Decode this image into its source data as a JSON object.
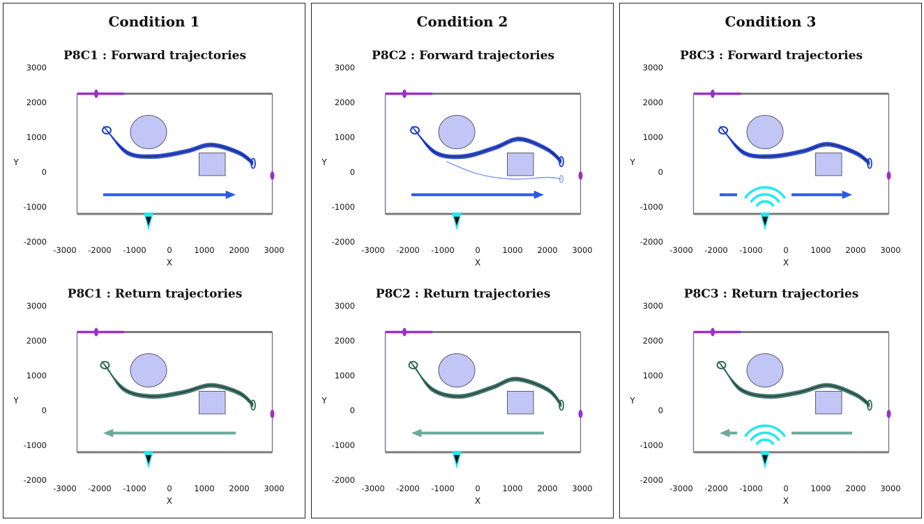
{
  "colors": {
    "forward_traj": "#1a3ccf",
    "return_traj": "#2f6b55",
    "forward_arrow": "#2a5ae8",
    "return_arrow": "#6aaa9a",
    "obstacle_fill": "#c2c6f6",
    "wall": "#7a7a7a",
    "start_marker": "#9b30c8",
    "sound_source": "#22e8f0"
  },
  "conditions": [
    {
      "title": "Condition 1"
    },
    {
      "title": "Condition 2"
    },
    {
      "title": "Condition 3"
    }
  ],
  "chart_data": [
    {
      "type": "line",
      "condition": "Condition 1",
      "direction": "forward",
      "title": "P8C1 : Forward trajectories",
      "xlabel": "X",
      "ylabel": "Y",
      "xlim": [
        -3000,
        3000
      ],
      "ylim": [
        -2000,
        3000
      ],
      "xticks": [
        "-3000",
        "-2000",
        "-1000",
        "0",
        "1000",
        "2000",
        "3000"
      ],
      "yticks": [
        "3000",
        "2000",
        "1000",
        "0",
        "-1000",
        "-2000"
      ],
      "path": [
        [
          -1800,
          1200
        ],
        [
          -1200,
          550
        ],
        [
          -400,
          450
        ],
        [
          500,
          600
        ],
        [
          1200,
          780
        ],
        [
          2000,
          550
        ],
        [
          2400,
          250
        ]
      ],
      "sound_icon": false,
      "outlier": false
    },
    {
      "type": "line",
      "condition": "Condition 1",
      "direction": "return",
      "title": "P8C1 : Return trajectories",
      "xlabel": "X",
      "ylabel": "Y",
      "xlim": [
        -3000,
        3000
      ],
      "ylim": [
        -2000,
        3000
      ],
      "xticks": [
        "-3000",
        "-2000",
        "-1000",
        "0",
        "1000",
        "2000",
        "3000"
      ],
      "yticks": [
        "3000",
        "2000",
        "1000",
        "0",
        "-1000",
        "-2000"
      ],
      "path": [
        [
          -1850,
          1300
        ],
        [
          -1300,
          600
        ],
        [
          -500,
          400
        ],
        [
          400,
          520
        ],
        [
          1200,
          720
        ],
        [
          2000,
          500
        ],
        [
          2400,
          150
        ]
      ],
      "sound_icon": false,
      "outlier": false
    },
    {
      "type": "line",
      "condition": "Condition 2",
      "direction": "forward",
      "title": "P8C2 : Forward trajectories",
      "xlabel": "X",
      "ylabel": "Y",
      "xlim": [
        -3000,
        3000
      ],
      "ylim": [
        -2000,
        3000
      ],
      "xticks": [
        "-3000",
        "-2000",
        "-1000",
        "0",
        "1000",
        "2000",
        "3000"
      ],
      "yticks": [
        "3000",
        "2000",
        "1000",
        "0",
        "-1000",
        "-2000"
      ],
      "path": [
        [
          -1800,
          1200
        ],
        [
          -1200,
          550
        ],
        [
          -400,
          450
        ],
        [
          500,
          700
        ],
        [
          1200,
          950
        ],
        [
          2000,
          650
        ],
        [
          2400,
          300
        ]
      ],
      "sound_icon": false,
      "outlier": true
    },
    {
      "type": "line",
      "condition": "Condition 2",
      "direction": "return",
      "title": "P8C2 : Return trajectories",
      "xlabel": "X",
      "ylabel": "Y",
      "xlim": [
        -3000,
        3000
      ],
      "ylim": [
        -2000,
        3000
      ],
      "xticks": [
        "-3000",
        "-2000",
        "-1000",
        "0",
        "1000",
        "2000",
        "3000"
      ],
      "yticks": [
        "3000",
        "2000",
        "1000",
        "0",
        "-1000",
        "-2000"
      ],
      "path": [
        [
          -1850,
          1300
        ],
        [
          -1300,
          600
        ],
        [
          -500,
          400
        ],
        [
          400,
          650
        ],
        [
          1100,
          900
        ],
        [
          2000,
          600
        ],
        [
          2400,
          150
        ]
      ],
      "sound_icon": false,
      "outlier": false
    },
    {
      "type": "line",
      "condition": "Condition 3",
      "direction": "forward",
      "title": "P8C3 : Forward trajectories",
      "xlabel": "X",
      "ylabel": "Y",
      "xlim": [
        -3000,
        3000
      ],
      "ylim": [
        -2000,
        3000
      ],
      "xticks": [
        "-3000",
        "-2000",
        "-1000",
        "0",
        "1000",
        "2000",
        "3000"
      ],
      "yticks": [
        "3000",
        "2000",
        "1000",
        "0",
        "-1000",
        "-2000"
      ],
      "path": [
        [
          -1800,
          1200
        ],
        [
          -1200,
          550
        ],
        [
          -400,
          450
        ],
        [
          500,
          600
        ],
        [
          1200,
          800
        ],
        [
          2000,
          550
        ],
        [
          2400,
          250
        ]
      ],
      "sound_icon": true,
      "outlier": false
    },
    {
      "type": "line",
      "condition": "Condition 3",
      "direction": "return",
      "title": "P8C3 : Return trajectories",
      "xlabel": "X",
      "ylabel": "Y",
      "xlim": [
        -3000,
        3000
      ],
      "ylim": [
        -2000,
        3000
      ],
      "xticks": [
        "-3000",
        "-2000",
        "-1000",
        "0",
        "1000",
        "2000",
        "3000"
      ],
      "yticks": [
        "3000",
        "2000",
        "1000",
        "0",
        "-1000",
        "-2000"
      ],
      "path": [
        [
          -1850,
          1300
        ],
        [
          -1300,
          600
        ],
        [
          -500,
          400
        ],
        [
          400,
          520
        ],
        [
          1200,
          720
        ],
        [
          2000,
          450
        ],
        [
          2400,
          150
        ]
      ],
      "sound_icon": true,
      "outlier": false
    }
  ],
  "scene": {
    "arena_x": [
      -2650,
      2950
    ],
    "arena_y": [
      -1200,
      2250
    ],
    "circle_center": [
      -600,
      1150
    ],
    "circle_radius_x": 520,
    "circle_radius_y": 480,
    "square_x": [
      850,
      1600
    ],
    "square_y": [
      -100,
      550
    ],
    "start_segment_x": [
      -2650,
      -1300
    ],
    "start_marker_x": -2100,
    "side_marker_y": -100,
    "source_x": -600,
    "forward_arrow_x": [
      -1900,
      1900
    ],
    "return_arrow_x": [
      1900,
      -1900
    ],
    "arrow_y": -650
  }
}
